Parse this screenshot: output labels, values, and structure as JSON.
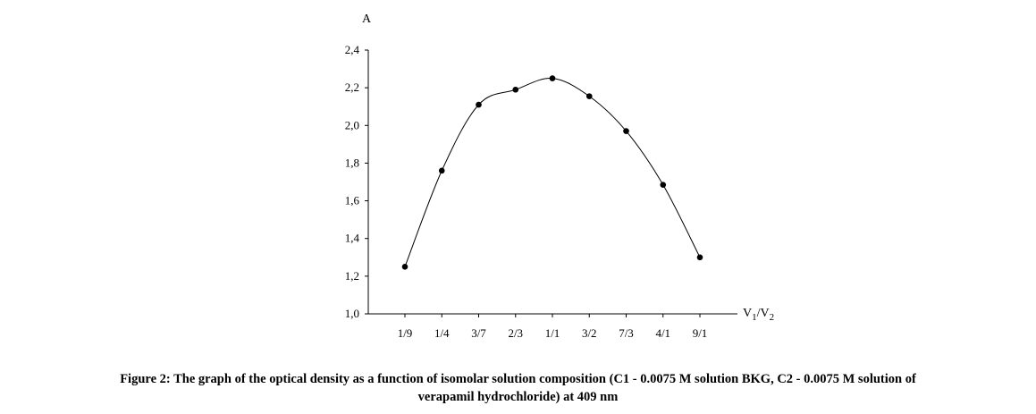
{
  "chart_data": {
    "type": "line",
    "categories": [
      "1/9",
      "1/4",
      "3/7",
      "2/3",
      "1/1",
      "3/2",
      "7/3",
      "4/1",
      "9/1"
    ],
    "series": [
      {
        "values": [
          1.25,
          1.76,
          2.11,
          2.19,
          2.25,
          2.155,
          1.97,
          1.685,
          1.3
        ]
      }
    ],
    "ylabel": "A",
    "xlabel_base": "V",
    "xlabel_sub1": "1",
    "xlabel_sep": "/V",
    "xlabel_sub2": "2",
    "ylim": [
      1.0,
      2.4
    ],
    "yticks": [
      1.0,
      1.2,
      1.4,
      1.6,
      1.8,
      2.0,
      2.2,
      2.4
    ],
    "ytick_labels": [
      "1,0",
      "1,2",
      "1,4",
      "1,6",
      "1,8",
      "2,0",
      "2,2",
      "2,4"
    ],
    "grid": false,
    "smooth": true
  },
  "caption": {
    "line1": "Figure 2: The graph of the optical density as a function of isomolar solution composition (C1 - 0.0075 M solution BKG, C2 - 0.0075 M solution of",
    "line2": "verapamil hydrochloride) at 409 nm"
  }
}
